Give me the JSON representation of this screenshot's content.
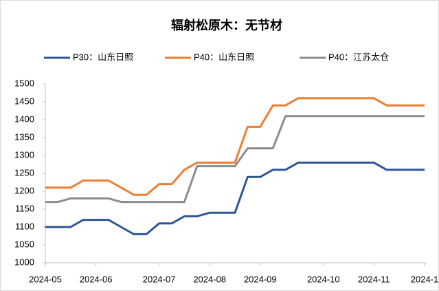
{
  "chart_data": {
    "type": "line",
    "title": "辐射松原木：无节材",
    "categories": [
      "2024-05",
      null,
      null,
      null,
      "2024-06",
      null,
      null,
      null,
      null,
      "2024-07",
      null,
      null,
      null,
      "2024-08",
      null,
      null,
      null,
      "2024-09",
      null,
      null,
      null,
      null,
      "2024-10",
      null,
      null,
      null,
      "2024-11",
      null,
      null,
      null,
      "2024-1"
    ],
    "series": [
      {
        "name": "P30：山东日照",
        "color": "#2f5597",
        "values": [
          1100,
          1100,
          1100,
          1120,
          1120,
          1120,
          1100,
          1080,
          1080,
          1110,
          1110,
          1130,
          1130,
          1140,
          1140,
          1140,
          1240,
          1240,
          1260,
          1260,
          1280,
          1280,
          1280,
          1280,
          1280,
          1280,
          1280,
          1260,
          1260,
          1260,
          1260
        ]
      },
      {
        "name": "P40：山东日照",
        "color": "#ed7d31",
        "values": [
          1210,
          1210,
          1210,
          1230,
          1230,
          1230,
          1210,
          1190,
          1190,
          1220,
          1220,
          1260,
          1280,
          1280,
          1280,
          1280,
          1380,
          1380,
          1440,
          1440,
          1460,
          1460,
          1460,
          1460,
          1460,
          1460,
          1460,
          1440,
          1440,
          1440,
          1440
        ]
      },
      {
        "name": "P40：江苏太仓",
        "color": "#8c8c8c",
        "values": [
          1170,
          1170,
          1180,
          1180,
          1180,
          1180,
          1170,
          1170,
          1170,
          1170,
          1170,
          1170,
          1270,
          1270,
          1270,
          1270,
          1320,
          1320,
          1320,
          1410,
          1410,
          1410,
          1410,
          1410,
          1410,
          1410,
          1410,
          1410,
          1410,
          1410,
          1410
        ]
      }
    ],
    "ylim": [
      1000,
      1500
    ],
    "yticks": [
      1000,
      1050,
      1100,
      1150,
      1200,
      1250,
      1300,
      1350,
      1400,
      1450,
      1500
    ],
    "grid": false,
    "legend": "top"
  }
}
